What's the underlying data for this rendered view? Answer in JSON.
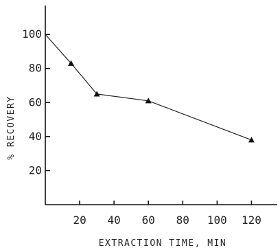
{
  "chart_data": {
    "type": "line",
    "title": "",
    "xlabel": "EXTRACTION TIME, MIN",
    "ylabel": "% RECOVERY",
    "x": [
      0,
      15,
      30,
      60,
      120
    ],
    "series": [
      {
        "values": [
          100,
          83,
          65,
          61,
          38
        ],
        "marker": "triangle"
      }
    ],
    "xlim": [
      0,
      135
    ],
    "ylim": [
      0,
      117
    ],
    "xticks": [
      20,
      40,
      60,
      80,
      100,
      120
    ],
    "xtick_marks": [
      20,
      40,
      60,
      80,
      100,
      120
    ],
    "yticks": [
      20,
      40,
      60,
      80,
      100
    ],
    "grid": false,
    "legend": "none",
    "colors": {
      "line": "#222222",
      "axis": "#111111",
      "text": "#222222"
    }
  }
}
